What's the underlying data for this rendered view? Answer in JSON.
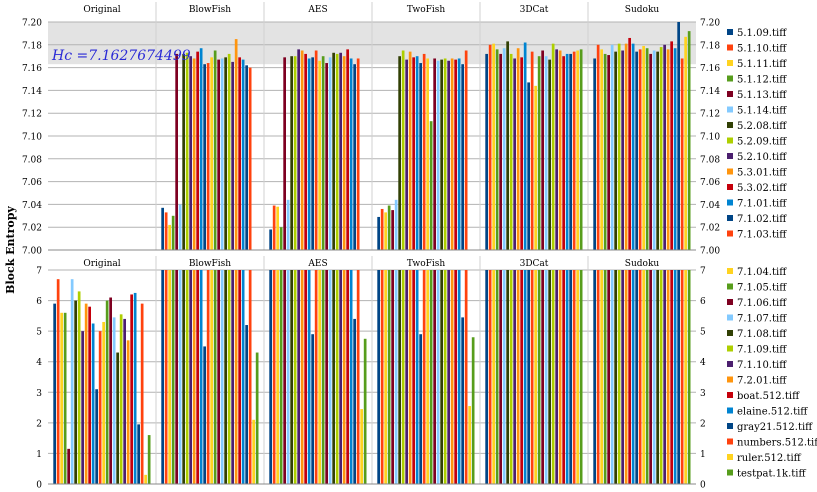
{
  "chart_data": [
    {
      "type": "bar",
      "panel": "top",
      "ylabel": "Block Entropy",
      "ylim": [
        7.0,
        7.2
      ],
      "yticks": [
        "7.00",
        "7.02",
        "7.04",
        "7.06",
        "7.08",
        "7.10",
        "7.12",
        "7.14",
        "7.16",
        "7.18",
        "7.20"
      ],
      "annotation": "Hc =7.1627674499",
      "threshold_band": [
        7.163,
        7.2
      ],
      "groups": [
        "Original",
        "BlowFish",
        "AES",
        "TwoFish",
        "3DCat",
        "Sudoku"
      ],
      "series": [
        {
          "name": "5.1.09.tiff",
          "color": "#004586",
          "values": [
            null,
            7.037,
            7.018,
            7.029,
            7.172,
            7.168
          ]
        },
        {
          "name": "5.1.10.tiff",
          "color": "#ff420e",
          "values": [
            null,
            7.033,
            7.039,
            7.036,
            7.18,
            7.18
          ]
        },
        {
          "name": "5.1.11.tiff",
          "color": "#ffd320",
          "values": [
            null,
            7.022,
            7.038,
            7.033,
            7.181,
            7.176
          ]
        },
        {
          "name": "5.1.12.tiff",
          "color": "#579d1c",
          "values": [
            null,
            7.03,
            7.02,
            7.039,
            7.176,
            7.172
          ]
        },
        {
          "name": "5.1.13.tiff",
          "color": "#7e0021",
          "values": [
            null,
            7.172,
            7.169,
            7.035,
            7.172,
            7.171
          ]
        },
        {
          "name": "5.1.14.tiff",
          "color": "#83caff",
          "values": [
            null,
            7.04,
            7.044,
            7.044,
            7.177,
            7.18
          ]
        },
        {
          "name": "5.2.08.tiff",
          "color": "#314004",
          "values": [
            null,
            7.172,
            7.17,
            7.17,
            7.183,
            7.174
          ]
        },
        {
          "name": "5.2.09.tiff",
          "color": "#aecf00",
          "values": [
            null,
            7.173,
            7.17,
            7.175,
            7.172,
            7.181
          ]
        },
        {
          "name": "5.2.10.tiff",
          "color": "#4b1f6f",
          "values": [
            null,
            7.17,
            7.176,
            7.167,
            7.168,
            7.175
          ]
        },
        {
          "name": "5.3.01.tiff",
          "color": "#ff950e",
          "values": [
            null,
            7.168,
            7.175,
            7.174,
            7.177,
            7.181
          ]
        },
        {
          "name": "5.3.02.tiff",
          "color": "#c5000b",
          "values": [
            null,
            7.174,
            7.172,
            7.169,
            7.169,
            7.186
          ]
        },
        {
          "name": "7.1.01.tiff",
          "color": "#0084d1",
          "values": [
            null,
            7.177,
            7.168,
            7.17,
            7.182,
            7.181
          ]
        },
        {
          "name": "7.1.02.tiff",
          "color": "#004586",
          "values": [
            null,
            7.163,
            7.169,
            7.164,
            7.147,
            7.174
          ]
        },
        {
          "name": "7.1.03.tiff",
          "color": "#ff420e",
          "values": [
            null,
            7.164,
            7.175,
            7.172,
            7.174,
            7.176
          ]
        },
        {
          "name": "7.1.04.tiff",
          "color": "#ffd320",
          "values": [
            null,
            7.169,
            7.166,
            7.168,
            7.144,
            7.179
          ]
        },
        {
          "name": "7.1.05.tiff",
          "color": "#579d1c",
          "values": [
            null,
            7.175,
            7.17,
            7.113,
            7.17,
            7.177
          ]
        },
        {
          "name": "7.1.06.tiff",
          "color": "#7e0021",
          "values": [
            null,
            7.167,
            7.164,
            7.168,
            7.175,
            7.172
          ]
        },
        {
          "name": "7.1.07.tiff",
          "color": "#83caff",
          "values": [
            null,
            7.168,
            7.169,
            7.166,
            7.17,
            7.175
          ]
        },
        {
          "name": "7.1.08.tiff",
          "color": "#314004",
          "values": [
            null,
            7.169,
            7.173,
            7.167,
            7.167,
            7.174
          ]
        },
        {
          "name": "7.1.09.tiff",
          "color": "#aecf00",
          "values": [
            null,
            7.172,
            7.172,
            7.168,
            7.181,
            7.178
          ]
        },
        {
          "name": "7.1.10.tiff",
          "color": "#4b1f6f",
          "values": [
            null,
            7.165,
            7.173,
            7.166,
            7.176,
            7.18
          ]
        },
        {
          "name": "7.2.01.tiff",
          "color": "#ff950e",
          "values": [
            null,
            7.185,
            7.17,
            7.168,
            7.175,
            7.176
          ]
        },
        {
          "name": "boat.512.tiff",
          "color": "#c5000b",
          "values": [
            null,
            7.169,
            7.176,
            7.167,
            7.17,
            7.183
          ]
        },
        {
          "name": "elaine.512.tiff",
          "color": "#0084d1",
          "values": [
            null,
            7.167,
            7.168,
            7.168,
            7.172,
            7.177
          ]
        },
        {
          "name": "gray21.512.tiff",
          "color": "#004586",
          "values": [
            null,
            7.162,
            7.163,
            7.163,
            7.172,
            7.2
          ]
        },
        {
          "name": "numbers.512.tiff",
          "color": "#ff420e",
          "values": [
            null,
            7.16,
            7.168,
            7.175,
            7.174,
            7.168
          ]
        },
        {
          "name": "ruler.512.tiff",
          "color": "#ffd320",
          "values": [
            null,
            null,
            null,
            null,
            7.175,
            7.187
          ]
        },
        {
          "name": "testpat.1k.tiff",
          "color": "#579d1c",
          "values": [
            null,
            null,
            null,
            null,
            7.176,
            7.192
          ]
        }
      ]
    },
    {
      "type": "bar",
      "panel": "bottom",
      "ylabel": "Block Entropy",
      "ylim": [
        0,
        7
      ],
      "yticks": [
        "0",
        "1",
        "2",
        "3",
        "4",
        "5",
        "6",
        "7"
      ],
      "groups": [
        "Original",
        "BlowFish",
        "AES",
        "TwoFish",
        "3DCat",
        "Sudoku"
      ],
      "series": [
        {
          "name": "5.1.09.tiff",
          "color": "#004586",
          "values": [
            5.9,
            7,
            7,
            7,
            7,
            7
          ]
        },
        {
          "name": "5.1.10.tiff",
          "color": "#ff420e",
          "values": [
            6.7,
            7,
            7,
            7,
            7,
            7
          ]
        },
        {
          "name": "5.1.11.tiff",
          "color": "#ffd320",
          "values": [
            5.6,
            7,
            7,
            7,
            7,
            7
          ]
        },
        {
          "name": "5.1.12.tiff",
          "color": "#579d1c",
          "values": [
            5.6,
            7,
            7,
            7,
            7,
            7
          ]
        },
        {
          "name": "5.1.13.tiff",
          "color": "#7e0021",
          "values": [
            1.15,
            7,
            7,
            7,
            7,
            7
          ]
        },
        {
          "name": "5.1.14.tiff",
          "color": "#83caff",
          "values": [
            6.7,
            7,
            7,
            7,
            7,
            7
          ]
        },
        {
          "name": "5.2.08.tiff",
          "color": "#314004",
          "values": [
            6.0,
            7,
            7,
            7,
            7,
            7
          ]
        },
        {
          "name": "5.2.09.tiff",
          "color": "#aecf00",
          "values": [
            6.3,
            7,
            7,
            7,
            7,
            7
          ]
        },
        {
          "name": "5.2.10.tiff",
          "color": "#4b1f6f",
          "values": [
            5.0,
            7,
            7,
            7,
            7,
            7
          ]
        },
        {
          "name": "5.3.01.tiff",
          "color": "#ff950e",
          "values": [
            5.9,
            7,
            7,
            7,
            7,
            7
          ]
        },
        {
          "name": "5.3.02.tiff",
          "color": "#c5000b",
          "values": [
            5.8,
            7,
            7,
            7,
            7,
            7
          ]
        },
        {
          "name": "7.1.01.tiff",
          "color": "#0084d1",
          "values": [
            5.25,
            7,
            7,
            7,
            7,
            7
          ]
        },
        {
          "name": "7.1.02.tiff",
          "color": "#004586",
          "values": [
            3.1,
            4.5,
            4.9,
            4.9,
            7,
            7
          ]
        },
        {
          "name": "7.1.03.tiff",
          "color": "#ff420e",
          "values": [
            5.0,
            7,
            7,
            7,
            7,
            7
          ]
        },
        {
          "name": "7.1.04.tiff",
          "color": "#ffd320",
          "values": [
            5.3,
            7,
            7,
            7,
            7,
            7
          ]
        },
        {
          "name": "7.1.05.tiff",
          "color": "#579d1c",
          "values": [
            6.0,
            7,
            7,
            7,
            7,
            7
          ]
        },
        {
          "name": "7.1.06.tiff",
          "color": "#7e0021",
          "values": [
            6.1,
            7,
            7,
            7,
            7,
            7
          ]
        },
        {
          "name": "7.1.07.tiff",
          "color": "#83caff",
          "values": [
            5.45,
            7,
            7,
            7,
            7,
            7
          ]
        },
        {
          "name": "7.1.08.tiff",
          "color": "#314004",
          "values": [
            4.3,
            7,
            7,
            7,
            7,
            7
          ]
        },
        {
          "name": "7.1.09.tiff",
          "color": "#aecf00",
          "values": [
            5.55,
            7,
            7,
            7,
            7,
            7
          ]
        },
        {
          "name": "7.1.10.tiff",
          "color": "#4b1f6f",
          "values": [
            5.4,
            7,
            7,
            7,
            7,
            7
          ]
        },
        {
          "name": "7.2.01.tiff",
          "color": "#ff950e",
          "values": [
            4.7,
            7,
            7,
            7,
            7,
            7
          ]
        },
        {
          "name": "boat.512.tiff",
          "color": "#c5000b",
          "values": [
            6.2,
            7,
            7,
            7,
            7,
            7
          ]
        },
        {
          "name": "elaine.512.tiff",
          "color": "#0084d1",
          "values": [
            6.25,
            7,
            7,
            7,
            7,
            7
          ]
        },
        {
          "name": "gray21.512.tiff",
          "color": "#004586",
          "values": [
            1.95,
            5.2,
            5.4,
            5.45,
            7,
            7
          ]
        },
        {
          "name": "numbers.512.tiff",
          "color": "#ff420e",
          "values": [
            5.9,
            7,
            7,
            7,
            7,
            7
          ]
        },
        {
          "name": "ruler.512.tiff",
          "color": "#ffd320",
          "values": [
            0.3,
            2.1,
            2.45,
            2.55,
            7,
            7
          ]
        },
        {
          "name": "testpat.1k.tiff",
          "color": "#579d1c",
          "values": [
            1.6,
            4.3,
            4.75,
            4.8,
            7,
            7
          ]
        }
      ]
    }
  ],
  "legend_top": [
    "5.1.09.tiff",
    "5.1.10.tiff",
    "5.1.11.tiff",
    "5.1.12.tiff",
    "5.1.13.tiff",
    "5.1.14.tiff",
    "5.2.08.tiff",
    "5.2.09.tiff",
    "5.2.10.tiff",
    "5.3.01.tiff",
    "5.3.02.tiff",
    "7.1.01.tiff",
    "7.1.02.tiff",
    "7.1.03.tiff"
  ],
  "legend_bottom": [
    "7.1.04.tiff",
    "7.1.05.tiff",
    "7.1.06.tiff",
    "7.1.07.tiff",
    "7.1.08.tiff",
    "7.1.09.tiff",
    "7.1.10.tiff",
    "7.2.01.tiff",
    "boat.512.tiff",
    "elaine.512.tiff",
    "gray21.512.tiff",
    "numbers.512.tiff",
    "ruler.512.tiff",
    "testpat.1k.tiff"
  ],
  "colors": {
    "grid": "#b3b3b3",
    "band": "#e3e3e3",
    "annotation": "#2a2ad6",
    "divider": "#d0d0d0"
  }
}
